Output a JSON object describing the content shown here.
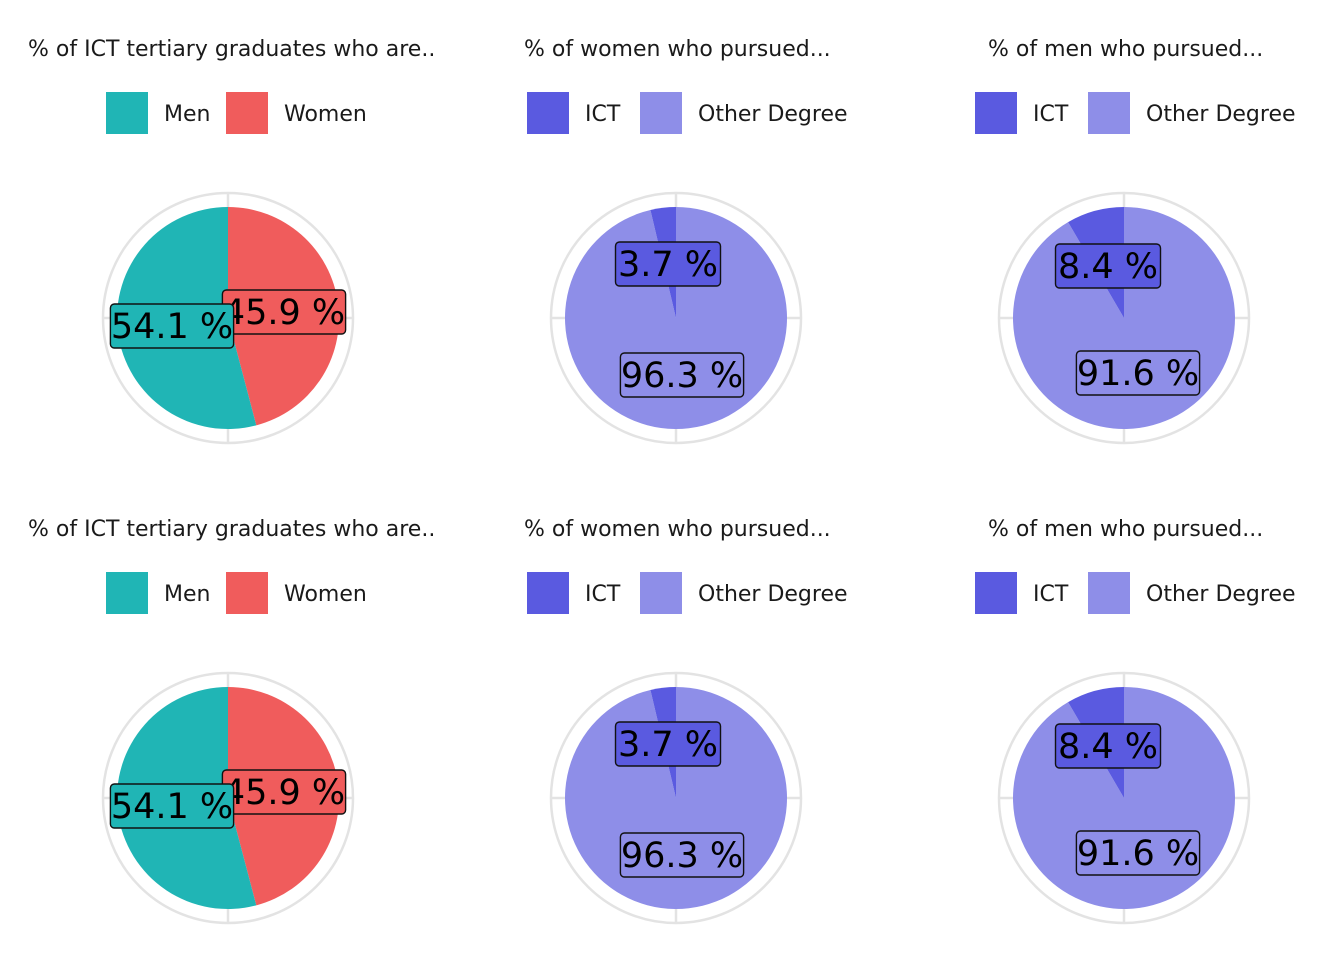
{
  "chart_data": [
    {
      "type": "pie",
      "title": "% of ICT tertiary graduates who are..",
      "legend_position": "top",
      "slices": [
        {
          "name": "Men",
          "value": 54.1,
          "label": "54.1 %",
          "color": "#20b5b5"
        },
        {
          "name": "Women",
          "value": 45.9,
          "label": "45.9 %",
          "color": "#f05c5c"
        }
      ]
    },
    {
      "type": "pie",
      "title": "% of women who pursued...",
      "legend_position": "top",
      "slices": [
        {
          "name": "ICT",
          "value": 3.7,
          "label": "3.7 %",
          "color": "#5a5ae0"
        },
        {
          "name": "Other Degree",
          "value": 96.3,
          "label": "96.3 %",
          "color": "#8e8ee8"
        }
      ]
    },
    {
      "type": "pie",
      "title": "% of men who pursued...",
      "legend_position": "top",
      "slices": [
        {
          "name": "ICT",
          "value": 8.4,
          "label": "8.4 %",
          "color": "#5a5ae0"
        },
        {
          "name": "Other Degree",
          "value": 91.6,
          "label": "91.6 %",
          "color": "#8e8ee8"
        }
      ]
    },
    {
      "type": "pie",
      "title": "% of ICT tertiary graduates who are..",
      "legend_position": "top",
      "slices": [
        {
          "name": "Men",
          "value": 54.1,
          "label": "54.1 %",
          "color": "#20b5b5"
        },
        {
          "name": "Women",
          "value": 45.9,
          "label": "45.9 %",
          "color": "#f05c5c"
        }
      ]
    },
    {
      "type": "pie",
      "title": "% of women who pursued...",
      "legend_position": "top",
      "slices": [
        {
          "name": "ICT",
          "value": 3.7,
          "label": "3.7 %",
          "color": "#5a5ae0"
        },
        {
          "name": "Other Degree",
          "value": 96.3,
          "label": "96.3 %",
          "color": "#8e8ee8"
        }
      ]
    },
    {
      "type": "pie",
      "title": "% of men who pursued...",
      "legend_position": "top",
      "slices": [
        {
          "name": "ICT",
          "value": 8.4,
          "label": "8.4 %",
          "color": "#5a5ae0"
        },
        {
          "name": "Other Degree",
          "value": 91.6,
          "label": "91.6 %",
          "color": "#8e8ee8"
        }
      ]
    }
  ]
}
